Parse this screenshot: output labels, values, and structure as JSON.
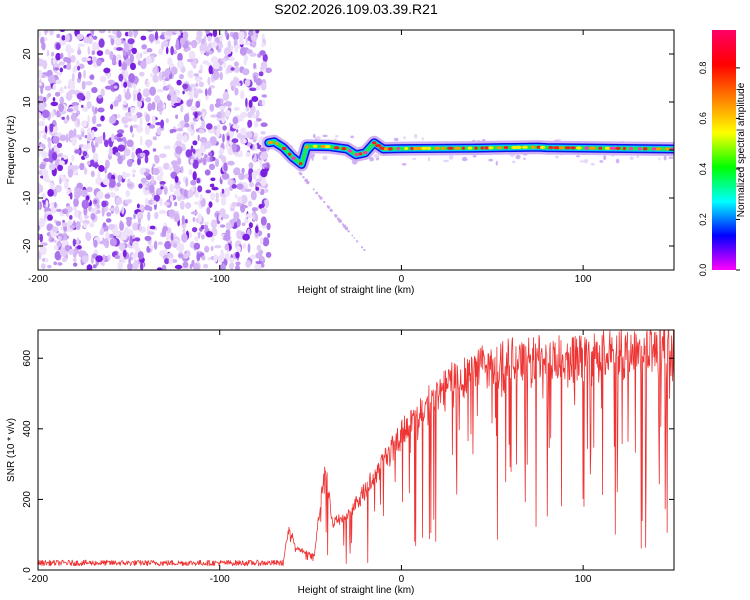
{
  "figure": {
    "title": "S202.2026.109.03.39.R21"
  },
  "chart_data": [
    {
      "type": "heatmap",
      "panel": "top",
      "xlabel": "Height of straight line (km)",
      "ylabel": "Frequency (Hz)",
      "xlim": [
        -200,
        150
      ],
      "ylim": [
        -25,
        25
      ],
      "xticks": [
        -200,
        -100,
        0,
        100
      ],
      "xtick_labels": [
        "-200",
        "-100",
        "0",
        "100"
      ],
      "yticks": [
        -20,
        -10,
        0,
        10,
        20
      ],
      "ytick_labels": [
        "-20",
        "-10",
        "0",
        "10",
        "20"
      ],
      "noise_region_x": [
        -200,
        -73
      ],
      "signal_track": [
        {
          "x": -73,
          "y": 1.5
        },
        {
          "x": -70,
          "y": 1.7
        },
        {
          "x": -65,
          "y": 0.5
        },
        {
          "x": -60,
          "y": -1.5
        },
        {
          "x": -55,
          "y": -3
        },
        {
          "x": -52,
          "y": 0.8
        },
        {
          "x": -40,
          "y": 0.7
        },
        {
          "x": -30,
          "y": 0.2
        },
        {
          "x": -25,
          "y": -1.0
        },
        {
          "x": -20,
          "y": -0.6
        },
        {
          "x": -15,
          "y": 1.5
        },
        {
          "x": -10,
          "y": 0.2
        },
        {
          "x": 0,
          "y": 0.3
        },
        {
          "x": 40,
          "y": 0.4
        },
        {
          "x": 75,
          "y": 0.6
        },
        {
          "x": 80,
          "y": 0.5
        },
        {
          "x": 150,
          "y": 0.2
        }
      ],
      "colorbar": {
        "label": "Normalized spectral amplitude",
        "range": [
          0,
          0.95
        ],
        "ticks": [
          0.0,
          0.2,
          0.4,
          0.6,
          0.8
        ],
        "tick_labels": [
          "0.0",
          "0.2",
          "0.4",
          "0.6",
          "0.8"
        ],
        "colormap": [
          "#ff00ff",
          "#0000ff",
          "#00ffff",
          "#00ff00",
          "#ffff00",
          "#ff8000",
          "#ff0000",
          "#ff0066"
        ]
      }
    },
    {
      "type": "line",
      "panel": "bottom",
      "xlabel": "Height of straight line (km)",
      "ylabel": "SNR (10 * v/v)",
      "xlim": [
        -200,
        150
      ],
      "ylim": [
        0,
        680
      ],
      "xticks": [
        -200,
        -100,
        0,
        100
      ],
      "xtick_labels": [
        "-200",
        "-100",
        "0",
        "100"
      ],
      "yticks": [
        0,
        200,
        400,
        600
      ],
      "ytick_labels": [
        "0",
        "200",
        "400",
        "600"
      ],
      "series": [
        {
          "name": "SNR",
          "color": "#ee3333",
          "envelope": [
            {
              "x": -200,
              "y": 20
            },
            {
              "x": -65,
              "y": 20
            },
            {
              "x": -62,
              "y": 120
            },
            {
              "x": -58,
              "y": 60
            },
            {
              "x": -48,
              "y": 40
            },
            {
              "x": -42,
              "y": 290
            },
            {
              "x": -38,
              "y": 130
            },
            {
              "x": -30,
              "y": 150
            },
            {
              "x": -20,
              "y": 220
            },
            {
              "x": -10,
              "y": 300
            },
            {
              "x": 0,
              "y": 380
            },
            {
              "x": 10,
              "y": 430
            },
            {
              "x": 20,
              "y": 480
            },
            {
              "x": 30,
              "y": 530
            },
            {
              "x": 45,
              "y": 560
            },
            {
              "x": 70,
              "y": 575
            },
            {
              "x": 100,
              "y": 580
            },
            {
              "x": 130,
              "y": 600
            },
            {
              "x": 150,
              "y": 610
            }
          ]
        }
      ]
    }
  ]
}
